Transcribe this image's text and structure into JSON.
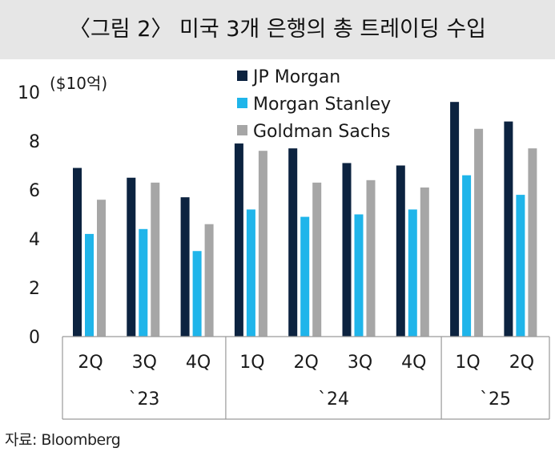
{
  "header": {
    "title": "〈그림 2〉 미국 3개 은행의 총 트레이딩 수입"
  },
  "footer": {
    "source": "자료: Bloomberg"
  },
  "chart_data": {
    "type": "bar",
    "unit_label": "($10억)",
    "categories": [
      "2Q",
      "3Q",
      "4Q",
      "1Q",
      "2Q",
      "3Q",
      "4Q",
      "1Q",
      "2Q"
    ],
    "groups": [
      {
        "label": "`23",
        "count": 3
      },
      {
        "label": "`24",
        "count": 4
      },
      {
        "label": "`25",
        "count": 2
      }
    ],
    "series": [
      {
        "name": "JP Morgan",
        "color": "#0c2340",
        "values": [
          6.9,
          6.5,
          5.7,
          7.9,
          7.7,
          7.1,
          7.0,
          9.6,
          8.8
        ]
      },
      {
        "name": "Morgan Stanley",
        "color": "#1fb5ea",
        "values": [
          4.2,
          4.4,
          3.5,
          5.2,
          4.9,
          5.0,
          5.2,
          6.6,
          5.8
        ]
      },
      {
        "name": "Goldman Sachs",
        "color": "#a6a6a6",
        "values": [
          5.6,
          6.3,
          4.6,
          7.6,
          6.3,
          6.4,
          6.1,
          8.5,
          7.7
        ]
      }
    ],
    "yticks": [
      0,
      2,
      4,
      6,
      8,
      10
    ],
    "ylim": [
      0,
      10
    ],
    "legend": "top-center",
    "grid": false
  }
}
